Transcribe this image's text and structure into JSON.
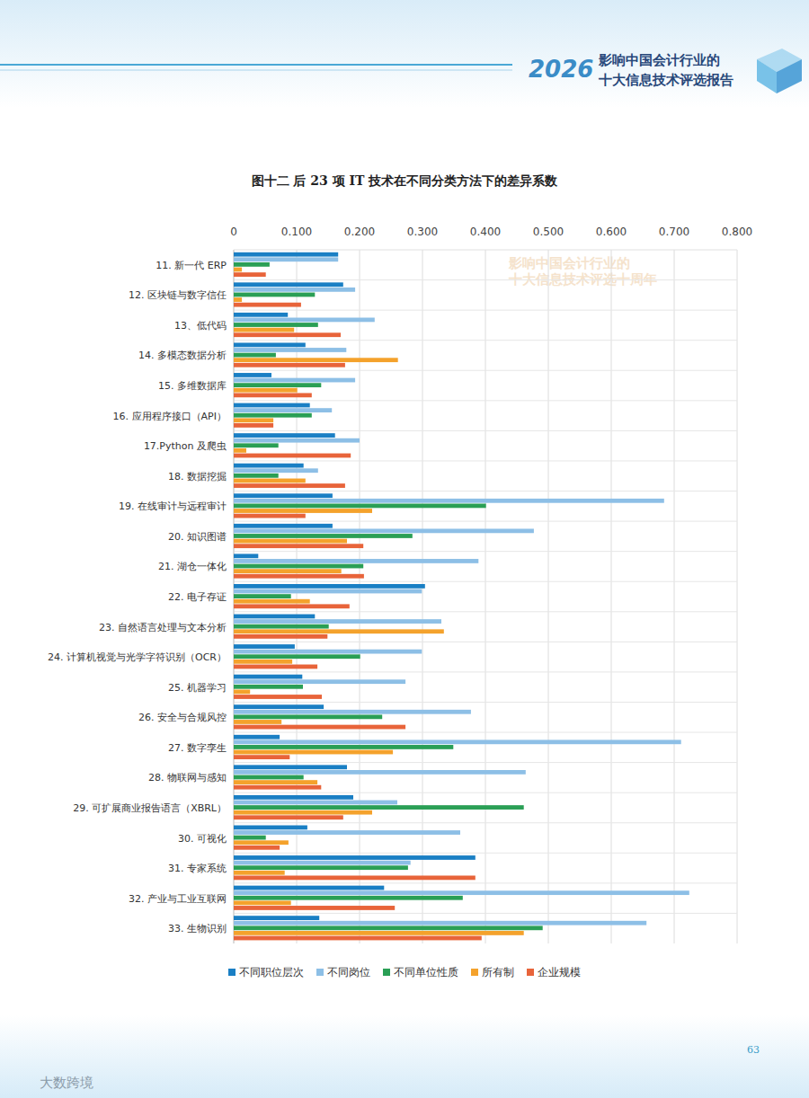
{
  "page": {
    "header_year": "2026",
    "header_title": [
      "影响中国会计行业的",
      "十大信息技术评选报告"
    ],
    "watermark": [
      "影响中国会计行业的",
      "十大信息技术评选十周年"
    ],
    "page_number": "63",
    "footer_mark": "大数跨境"
  },
  "chart_data": {
    "type": "bar",
    "orientation": "horizontal",
    "title": "图十二  后 23 项 IT 技术在不同分类方法下的差异系数",
    "categories": [
      "11. 新一代 ERP",
      "12. 区块链与数字信任",
      "13、低代码",
      "14. 多模态数据分析",
      "15. 多维数据库",
      "16. 应用程序接口（API）",
      "17.Python 及爬虫",
      "18. 数据挖掘",
      "19. 在线审计与远程审计",
      "20. 知识图谱",
      "21. 湖仓一体化",
      "22. 电子存证",
      "23. 自然语言处理与文本分析",
      "24. 计算机视觉与光学字符识别（OCR）",
      "25. 机器学习",
      "26. 安全与合规风控",
      "27. 数字孪生",
      "28. 物联网与感知",
      "29. 可扩展商业报告语言（XBRL）",
      "30. 可视化",
      "31. 专家系统",
      "32. 产业与工业互联网",
      "33. 生物识别"
    ],
    "series": [
      {
        "name": "不同职位层次",
        "color": "#1a7fc4",
        "values": [
          0.166,
          0.174,
          0.086,
          0.114,
          0.06,
          0.121,
          0.161,
          0.111,
          0.157,
          0.157,
          0.039,
          0.304,
          0.129,
          0.097,
          0.109,
          0.143,
          0.073,
          0.18,
          0.19,
          0.117,
          0.384,
          0.239,
          0.136
        ]
      },
      {
        "name": "不同岗位",
        "color": "#8dbfe6",
        "values": [
          0.166,
          0.193,
          0.224,
          0.179,
          0.193,
          0.156,
          0.2,
          0.134,
          0.684,
          0.477,
          0.389,
          0.299,
          0.33,
          0.299,
          0.273,
          0.377,
          0.711,
          0.464,
          0.26,
          0.36,
          0.281,
          0.724,
          0.656
        ]
      },
      {
        "name": "不同单位性质",
        "color": "#2a9f55",
        "values": [
          0.057,
          0.129,
          0.134,
          0.067,
          0.139,
          0.124,
          0.071,
          0.071,
          0.401,
          0.284,
          0.206,
          0.091,
          0.151,
          0.201,
          0.11,
          0.236,
          0.349,
          0.111,
          0.461,
          0.051,
          0.277,
          0.364,
          0.491
        ]
      },
      {
        "name": "所有制",
        "color": "#f4a22c",
        "values": [
          0.013,
          0.013,
          0.096,
          0.261,
          0.101,
          0.063,
          0.02,
          0.114,
          0.22,
          0.18,
          0.171,
          0.121,
          0.334,
          0.093,
          0.026,
          0.076,
          0.253,
          0.133,
          0.22,
          0.087,
          0.081,
          0.091,
          0.461
        ]
      },
      {
        "name": "企业规模",
        "color": "#e8643a",
        "values": [
          0.051,
          0.107,
          0.17,
          0.177,
          0.124,
          0.063,
          0.186,
          0.177,
          0.114,
          0.206,
          0.207,
          0.184,
          0.149,
          0.133,
          0.14,
          0.273,
          0.089,
          0.139,
          0.174,
          0.073,
          0.384,
          0.256,
          0.394
        ]
      }
    ],
    "xlim": [
      0,
      0.8
    ],
    "xticks": [
      0,
      {
        "value": 0.1,
        "label": "0.100"
      },
      {
        "value": 0.2,
        "label": "0.200"
      },
      {
        "value": 0.3,
        "label": "0.300"
      },
      {
        "value": 0.4,
        "label": "0.400"
      },
      {
        "value": 0.5,
        "label": "0.500"
      },
      {
        "value": 0.6,
        "label": "0.600"
      },
      {
        "value": 0.7,
        "label": "0.700"
      },
      {
        "value": 0.8,
        "label": "0.800"
      }
    ],
    "grid": true,
    "legend": "bottom"
  }
}
